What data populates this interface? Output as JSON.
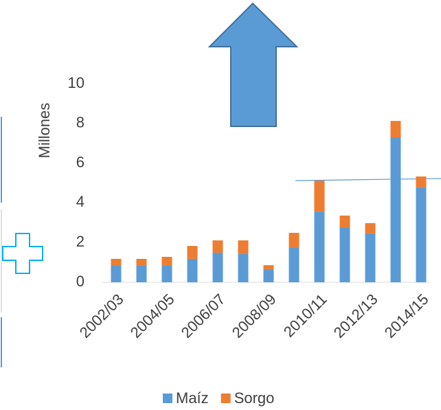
{
  "chart_data": {
    "type": "bar",
    "stacked": true,
    "y_label": "Millones",
    "categories": [
      "2002/03",
      null,
      "2004/05",
      null,
      "2006/07",
      null,
      "2008/09",
      null,
      "2010/11",
      null,
      "2012/13",
      null,
      "2014/15"
    ],
    "series": [
      {
        "name": "Maíz",
        "color": "#5b9bd5",
        "values": [
          0.83,
          0.86,
          0.83,
          1.18,
          1.49,
          1.42,
          0.66,
          1.73,
          3.56,
          2.77,
          2.46,
          7.3,
          4.78
        ]
      },
      {
        "name": "Sorgo",
        "color": "#ed7d31",
        "values": [
          0.35,
          0.32,
          0.45,
          0.65,
          0.62,
          0.69,
          0.2,
          0.76,
          1.56,
          0.59,
          0.52,
          0.83,
          0.55
        ]
      }
    ],
    "ylim": [
      0,
      10
    ],
    "yticks": [
      0,
      2,
      4,
      6,
      8,
      10
    ],
    "grid": false,
    "legend": "bottom"
  }
}
